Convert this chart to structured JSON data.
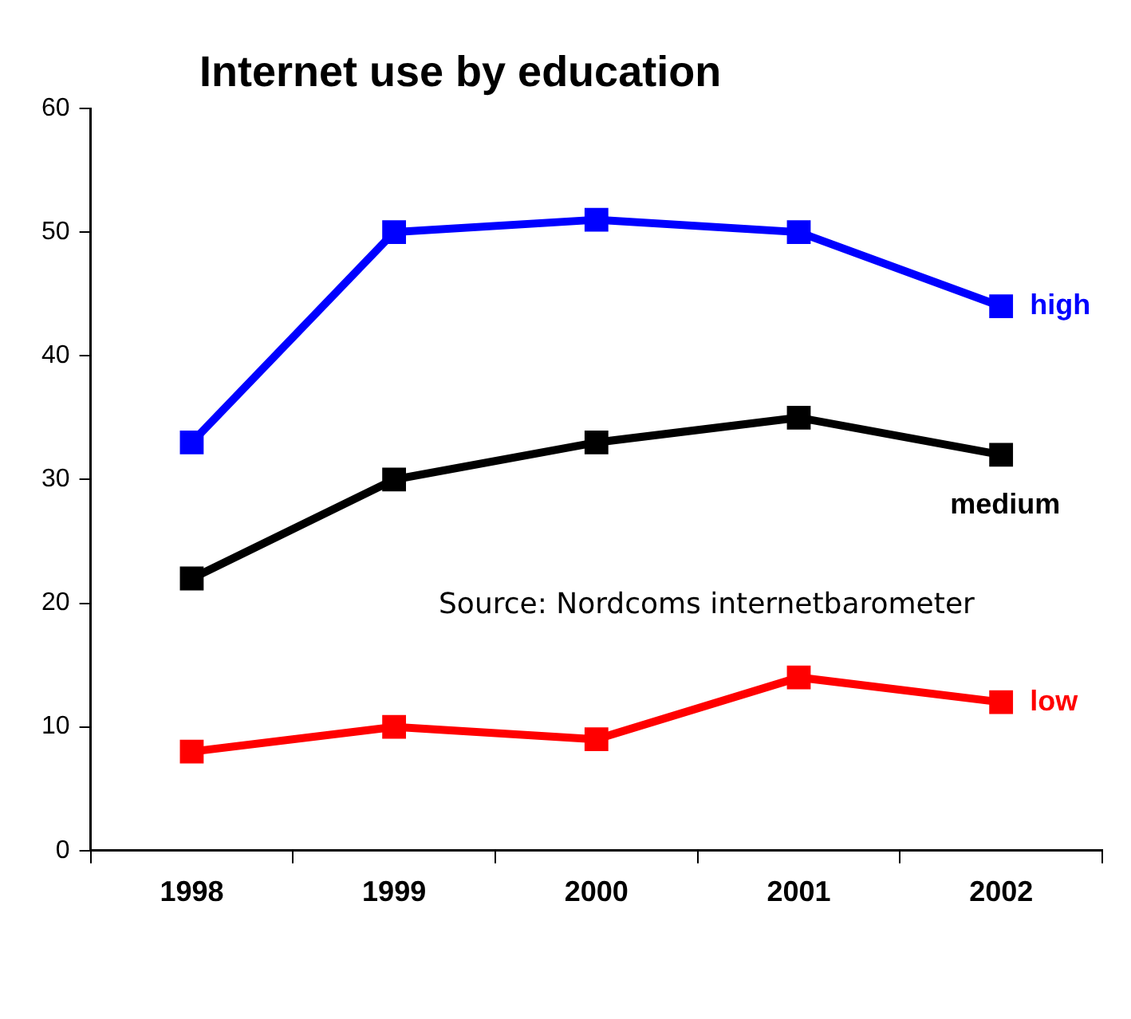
{
  "chart_data": {
    "type": "line",
    "title": "Internet use by education",
    "categories": [
      "1998",
      "1999",
      "2000",
      "2001",
      "2002"
    ],
    "series": [
      {
        "name": "high",
        "color": "#0000ff",
        "values": [
          33,
          50,
          51,
          50,
          44
        ]
      },
      {
        "name": "medium",
        "color": "#000000",
        "values": [
          22,
          30,
          33,
          35,
          32
        ]
      },
      {
        "name": "low",
        "color": "#ff0000",
        "values": [
          8,
          10,
          9,
          14,
          12
        ]
      }
    ],
    "ylim": [
      0,
      60
    ],
    "yticks": [
      0,
      10,
      20,
      30,
      40,
      50,
      60
    ],
    "grid": false,
    "legend": false,
    "marker": "square",
    "line_style": "solid",
    "annotations": [
      "Source: Nordcoms internetbarometer"
    ]
  }
}
